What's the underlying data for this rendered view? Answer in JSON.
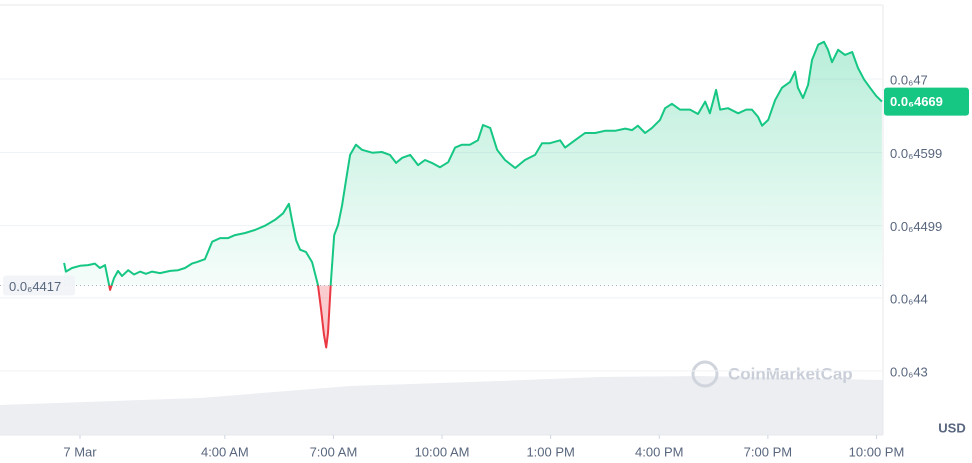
{
  "chart_data": {
    "type": "line",
    "x": [
      -0.44,
      -0.39,
      -0.22,
      0,
      0.22,
      0.41,
      0.55,
      0.69,
      0.83,
      0.94,
      1.05,
      1.16,
      1.33,
      1.49,
      1.66,
      1.82,
      1.99,
      2.21,
      2.49,
      2.71,
      2.9,
      3.09,
      3.23,
      3.45,
      3.65,
      3.87,
      4.09,
      4.28,
      4.56,
      4.83,
      5.11,
      5.39,
      5.61,
      5.77,
      5.86,
      5.97,
      6.08,
      6.24,
      6.41,
      6.57,
      6.66,
      6.74,
      6.8,
      6.85,
      6.93,
      7.02,
      7.13,
      7.24,
      7.35,
      7.46,
      7.62,
      7.79,
      8.07,
      8.34,
      8.56,
      8.73,
      8.9,
      9.12,
      9.34,
      9.53,
      9.72,
      9.94,
      10.17,
      10.36,
      10.55,
      10.77,
      10.99,
      11.13,
      11.33,
      11.52,
      11.74,
      12.02,
      12.29,
      12.57,
      12.76,
      12.98,
      13.26,
      13.4,
      13.67,
      13.95,
      14.23,
      14.5,
      14.78,
      15.06,
      15.25,
      15.41,
      15.61,
      15.8,
      16.02,
      16.16,
      16.35,
      16.57,
      16.85,
      17.07,
      17.27,
      17.4,
      17.57,
      17.68,
      17.9,
      18.18,
      18.4,
      18.56,
      18.73,
      18.84,
      19.01,
      19.2,
      19.39,
      19.61,
      19.75,
      19.83,
      19.97,
      20.11,
      20.22,
      20.39,
      20.55,
      20.66,
      20.77,
      20.94,
      21.13,
      21.33,
      21.49,
      21.66,
      21.82,
      21.99,
      22.15
    ],
    "series": [
      {
        "color": "#16c784",
        "down_color": "#ea3943",
        "values": [
          4.448e-07,
          4.436e-07,
          4.441e-07,
          4.444e-07,
          4.445e-07,
          4.447e-07,
          4.441e-07,
          4.445e-07,
          4.411e-07,
          4.427e-07,
          4.437e-07,
          4.43e-07,
          4.438e-07,
          4.432e-07,
          4.436e-07,
          4.433e-07,
          4.436e-07,
          4.434e-07,
          4.437e-07,
          4.438e-07,
          4.441e-07,
          4.447e-07,
          4.449e-07,
          4.453e-07,
          4.477e-07,
          4.482e-07,
          4.482e-07,
          4.486e-07,
          4.489e-07,
          4.493e-07,
          4.499e-07,
          4.507e-07,
          4.516e-07,
          4.529e-07,
          4.505e-07,
          4.479e-07,
          4.466e-07,
          4.463e-07,
          4.449e-07,
          4.418e-07,
          4.384e-07,
          4.349e-07,
          4.332e-07,
          4.352e-07,
          4.422e-07,
          4.486e-07,
          4.5e-07,
          4.527e-07,
          4.562e-07,
          4.596e-07,
          4.61e-07,
          4.603e-07,
          4.599e-07,
          4.6e-07,
          4.596e-07,
          4.585e-07,
          4.592e-07,
          4.596e-07,
          4.582e-07,
          4.589e-07,
          4.585e-07,
          4.579e-07,
          4.586e-07,
          4.606e-07,
          4.61e-07,
          4.61e-07,
          4.616e-07,
          4.637e-07,
          4.633e-07,
          4.603e-07,
          4.589e-07,
          4.578e-07,
          4.589e-07,
          4.596e-07,
          4.612e-07,
          4.612e-07,
          4.616e-07,
          4.606e-07,
          4.616e-07,
          4.626e-07,
          4.626e-07,
          4.629e-07,
          4.629e-07,
          4.632e-07,
          4.63e-07,
          4.636e-07,
          4.626e-07,
          4.633e-07,
          4.644e-07,
          4.66e-07,
          4.666e-07,
          4.658e-07,
          4.658e-07,
          4.652e-07,
          4.669e-07,
          4.653e-07,
          4.685e-07,
          4.658e-07,
          4.66e-07,
          4.653e-07,
          4.658e-07,
          4.658e-07,
          4.648e-07,
          4.636e-07,
          4.644e-07,
          4.671e-07,
          4.688e-07,
          4.696e-07,
          4.71e-07,
          4.688e-07,
          4.674e-07,
          4.692e-07,
          4.726e-07,
          4.747e-07,
          4.751e-07,
          4.74e-07,
          4.723e-07,
          4.74e-07,
          4.733e-07,
          4.737e-07,
          4.715e-07,
          4.699e-07,
          4.688e-07,
          4.677e-07,
          4.669e-07
        ]
      }
    ],
    "xlim": [
      -2.21,
      22.18
    ],
    "xticks": [
      {
        "value": 0,
        "label": "7 Mar"
      },
      {
        "value": 4,
        "label": "4:00 AM"
      },
      {
        "value": 7,
        "label": "7:00 AM"
      },
      {
        "value": 10,
        "label": "10:00 AM"
      },
      {
        "value": 13,
        "label": "1:00 PM"
      },
      {
        "value": 16,
        "label": "4:00 PM"
      },
      {
        "value": 19,
        "label": "7:00 PM"
      },
      {
        "value": 22,
        "label": "10:00 PM"
      }
    ],
    "ylim": [
      4.2121e-07,
      4.8014e-07
    ],
    "yticks": [
      {
        "value": 4.3e-07,
        "label": "0.0₆43"
      },
      {
        "value": 4.4e-07,
        "label": "0.0₆44"
      },
      {
        "value": 4.499e-07,
        "label": "0.0₆4499"
      },
      {
        "value": 4.599e-07,
        "label": "0.0₆4599"
      },
      {
        "value": 4.7e-07,
        "label": "0.0₆47"
      }
    ],
    "grid": true,
    "reference": {
      "value": 4.417e-07,
      "label": "0.0₆4417"
    },
    "current": {
      "value": 4.669e-07,
      "label": "0.0₆4669"
    },
    "currency": "USD",
    "watermark": "CoinMarketCap"
  }
}
